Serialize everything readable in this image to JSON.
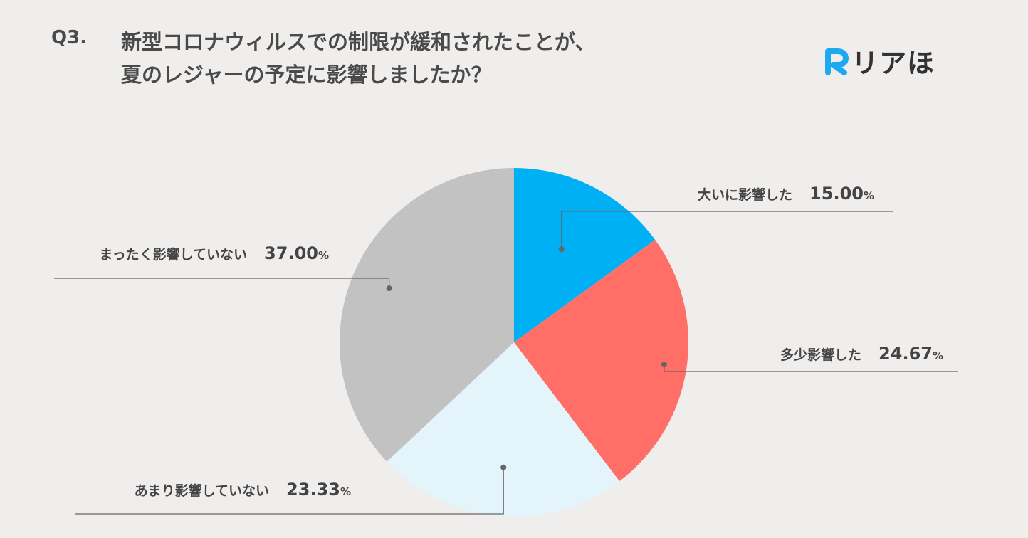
{
  "header": {
    "question_number": "Q3.",
    "title_line1": "新型コロナウィルスでの制限が緩和されたことが、",
    "title_line2": "夏のレジャーの予定に影響しましたか？"
  },
  "logo": {
    "mark": "R",
    "text": "リアほ",
    "color": "#1ea8f0"
  },
  "chart_data": {
    "type": "pie",
    "title": "新型コロナウィルスでの制限が緩和されたことが、夏のレジャーの予定に影響しましたか？",
    "start": "top",
    "direction": "clockwise",
    "slices": [
      {
        "label": "大いに影響した",
        "value": 15.0,
        "value_label": "15.00",
        "unit": "%",
        "color": "#00b0f5"
      },
      {
        "label": "多少影響した",
        "value": 24.67,
        "value_label": "24.67",
        "unit": "%",
        "color": "#ff6e67"
      },
      {
        "label": "あまり影響していない",
        "value": 23.33,
        "value_label": "23.33",
        "unit": "%",
        "color": "#e3f4fb"
      },
      {
        "label": "まったく影響していない",
        "value": 37.0,
        "value_label": "37.00",
        "unit": "%",
        "color": "#c2c2c2"
      }
    ],
    "leader_color": "#666666"
  }
}
